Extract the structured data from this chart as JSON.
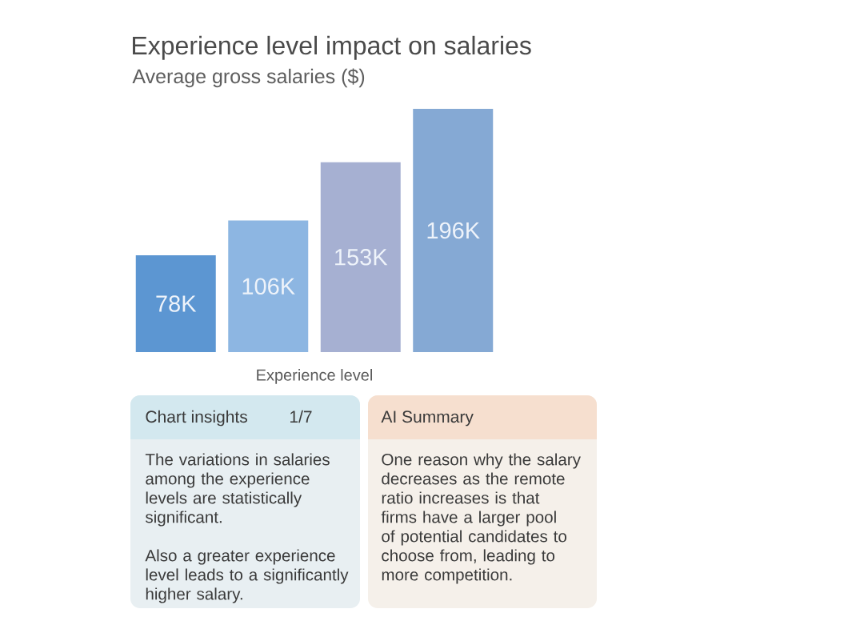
{
  "chart_data": {
    "type": "bar",
    "title": "Experience level impact on salaries",
    "subtitle": "Average gross salaries ($)",
    "xlabel": "Experience level",
    "categories": [
      null,
      null,
      null,
      null
    ],
    "values": [
      78000,
      106000,
      153000,
      196000
    ],
    "value_labels": [
      "78K",
      "106K",
      "153K",
      "196K"
    ],
    "colors": [
      "#5c96d2",
      "#8db6e2",
      "#a6b0d2",
      "#85a9d4"
    ],
    "annotations": [
      "Chart insights",
      "1/7",
      "The variations in salaries among the experience levels are statistically significant.",
      "Also a greater experience level leads to a significantly higher salary.",
      "AI Summary",
      "One reason why the salary decreases as the remote ratio increases is that firms have a larger pool of potential candidates to choose from, leading to more competition."
    ]
  }
}
